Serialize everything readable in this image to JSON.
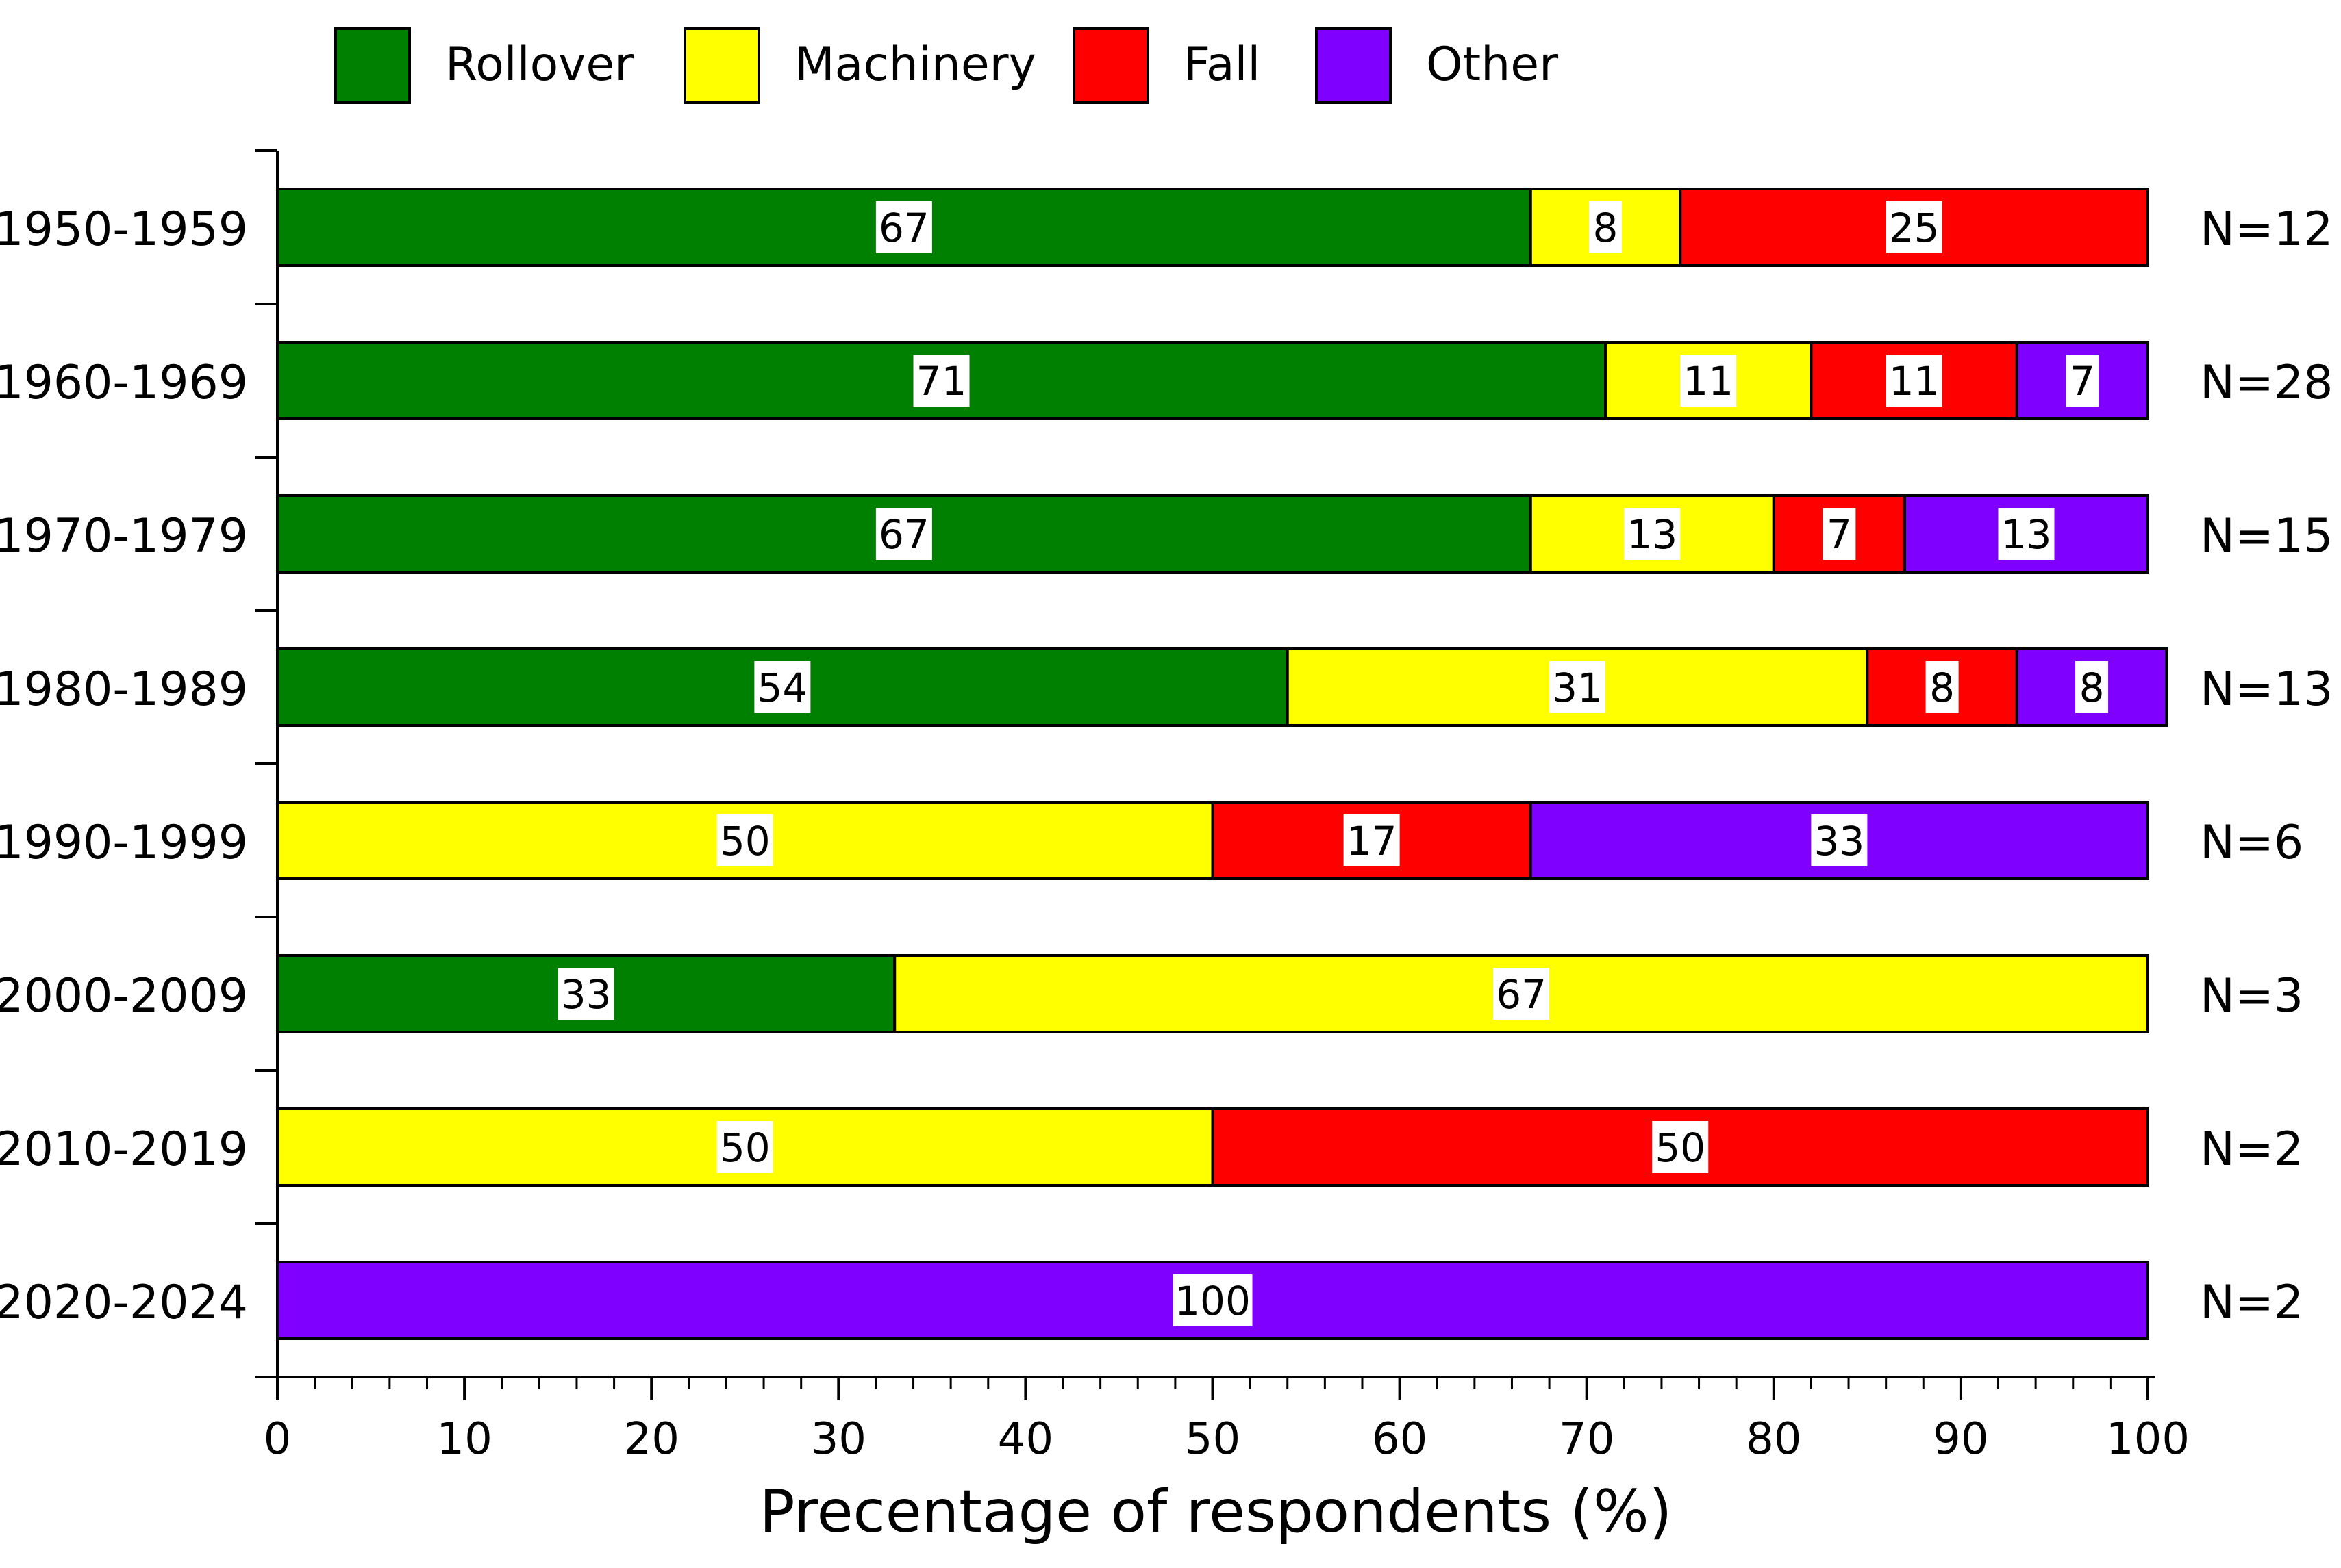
{
  "chart_data": {
    "type": "bar",
    "orientation": "horizontal",
    "stacked": true,
    "title": "",
    "xlabel": "Precentage of respondents (%)",
    "ylabel": "",
    "xlim": [
      0,
      100
    ],
    "xticks": [
      "0",
      "10",
      "20",
      "30",
      "40",
      "50",
      "60",
      "70",
      "80",
      "90",
      "100"
    ],
    "categories": [
      "1950-1959",
      "1960-1969",
      "1970-1979",
      "1980-1989",
      "1990-1999",
      "2000-2009",
      "2010-2019",
      "2020-2024"
    ],
    "n_labels": [
      "N=12",
      "N=28",
      "N=15",
      "N=13",
      "N=6",
      "N=3",
      "N=2",
      "N=2"
    ],
    "series": [
      {
        "name": "Rollover",
        "color": "#008000",
        "values": [
          67,
          71,
          67,
          54,
          0,
          33,
          0,
          0
        ]
      },
      {
        "name": "Machinery",
        "color": "#ffff00",
        "values": [
          8,
          11,
          13,
          31,
          50,
          67,
          50,
          0
        ]
      },
      {
        "name": "Fall",
        "color": "#ff0000",
        "values": [
          25,
          11,
          7,
          8,
          17,
          0,
          50,
          0
        ]
      },
      {
        "name": "Other",
        "color": "#8000ff",
        "values": [
          0,
          7,
          13,
          8,
          33,
          0,
          0,
          100
        ]
      }
    ],
    "legend_position": "top"
  }
}
